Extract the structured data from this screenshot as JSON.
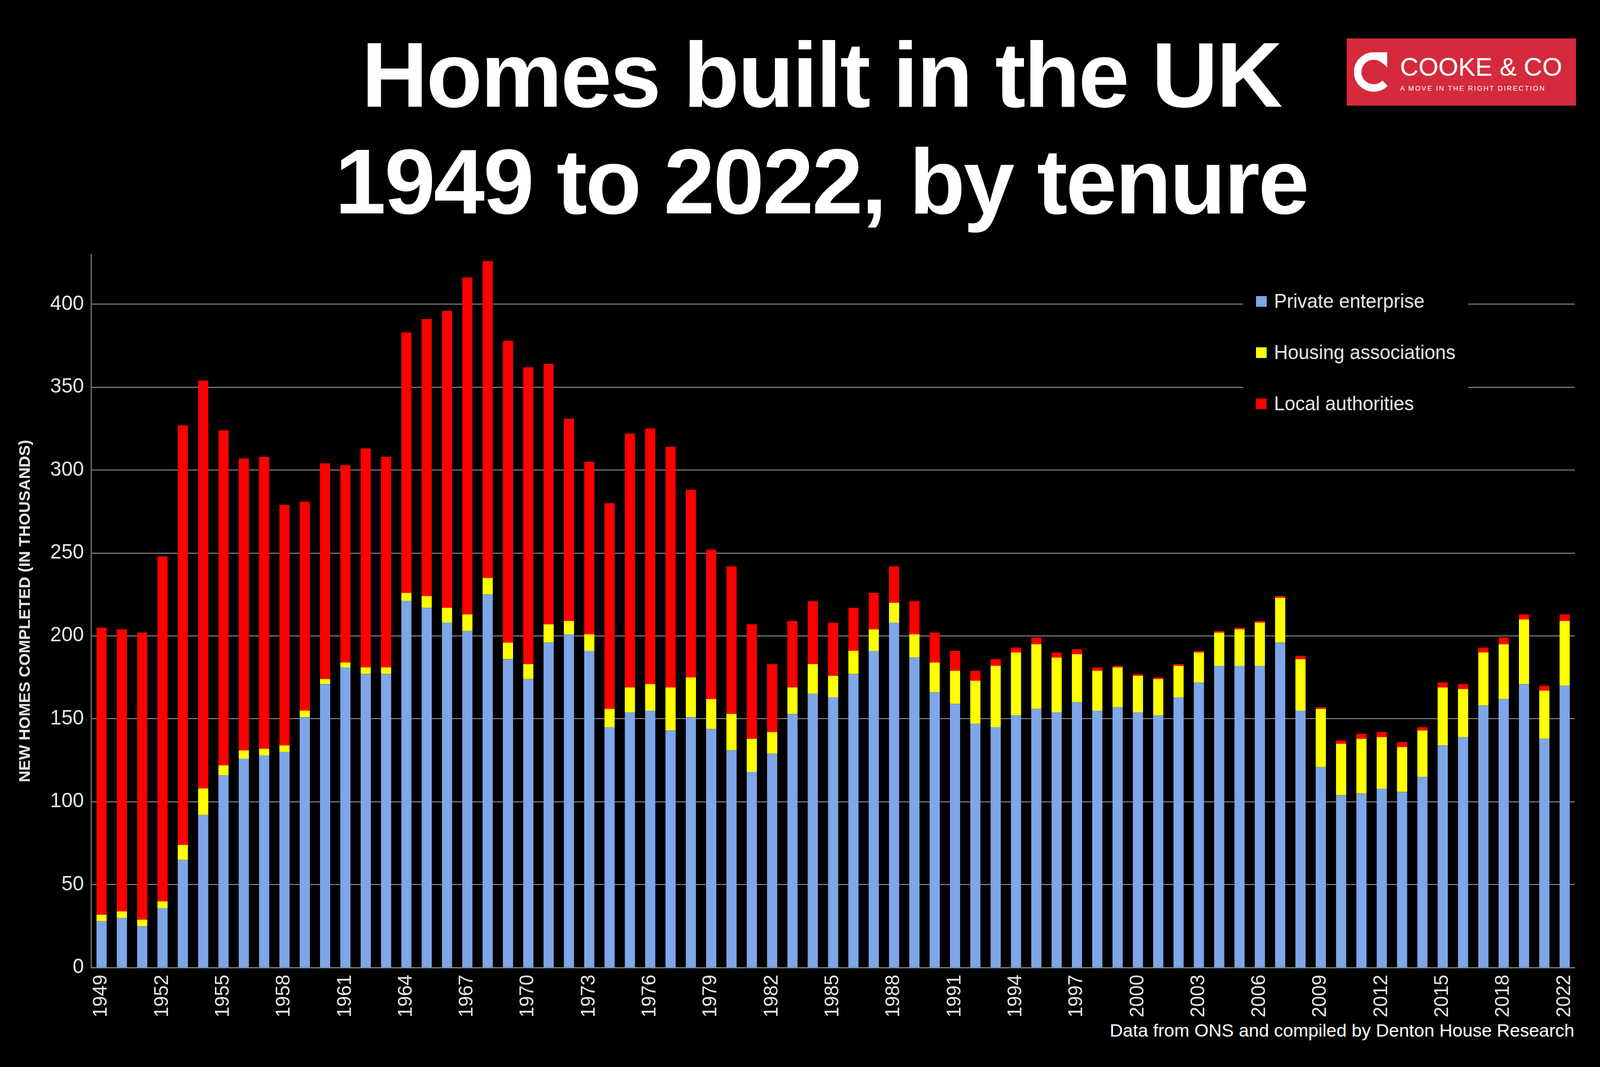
{
  "chart_data": {
    "type": "bar",
    "title": "Homes built in the UK\n1949 to 2022, by tenure",
    "y_label": "NEW HOMES COMPLETED (IN THOUSANDS)",
    "annotations": [
      "Data from ONS and compiled by Denton House Research"
    ],
    "categories": [
      "1949",
      null,
      null,
      "1952",
      null,
      null,
      "1955",
      null,
      null,
      "1958",
      null,
      null,
      "1961",
      null,
      null,
      "1964",
      null,
      null,
      "1967",
      null,
      null,
      "1970",
      null,
      null,
      "1973",
      null,
      null,
      "1976",
      null,
      null,
      "1979",
      null,
      null,
      "1982",
      null,
      null,
      "1985",
      null,
      null,
      "1988",
      null,
      null,
      "1991",
      null,
      null,
      "1994",
      null,
      null,
      "1997",
      null,
      null,
      "2000",
      null,
      null,
      "2003",
      null,
      null,
      "2006",
      null,
      null,
      "2009",
      null,
      null,
      "2012",
      null,
      null,
      "2015",
      null,
      null,
      "2018",
      null,
      null,
      "2022"
    ],
    "series": [
      {
        "name": "Private enterprise",
        "color": "#7ea6e8",
        "values": [
          28,
          30,
          25,
          36,
          65,
          92,
          116,
          126,
          128,
          130,
          151,
          171,
          181,
          177,
          177,
          221,
          217,
          208,
          203,
          225,
          186,
          174,
          196,
          201,
          191,
          145,
          154,
          155,
          143,
          151,
          144,
          131,
          118,
          129,
          153,
          165,
          163,
          177,
          191,
          208,
          187,
          166,
          159,
          147,
          145,
          152,
          156,
          154,
          160,
          155,
          157,
          154,
          152,
          163,
          172,
          182,
          182,
          182,
          196,
          155,
          121,
          104,
          105,
          108,
          106,
          115,
          134,
          139,
          158,
          162,
          171,
          138,
          170
        ]
      },
      {
        "name": "Housing associations",
        "color": "#ffff00",
        "values": [
          4,
          4,
          4,
          4,
          9,
          16,
          6,
          5,
          4,
          4,
          4,
          3,
          3,
          4,
          4,
          5,
          7,
          9,
          10,
          10,
          10,
          9,
          11,
          8,
          10,
          11,
          15,
          16,
          26,
          24,
          18,
          22,
          20,
          13,
          16,
          18,
          13,
          14,
          13,
          12,
          14,
          18,
          20,
          26,
          37,
          38,
          39,
          33,
          29,
          24,
          24,
          22,
          22,
          19,
          18,
          20,
          22,
          26,
          27,
          31,
          35,
          31,
          33,
          31,
          27,
          28,
          35,
          29,
          32,
          33,
          39,
          29,
          39
        ]
      },
      {
        "name": "Local authorities",
        "color": "#ff0000",
        "values": [
          173,
          170,
          173,
          208,
          253,
          246,
          202,
          176,
          176,
          145,
          126,
          130,
          119,
          132,
          127,
          157,
          167,
          179,
          203,
          191,
          182,
          179,
          157,
          122,
          104,
          124,
          153,
          154,
          145,
          113,
          90,
          89,
          69,
          41,
          40,
          38,
          32,
          26,
          22,
          22,
          20,
          18,
          12,
          6,
          4,
          3,
          4,
          3,
          3,
          2,
          1,
          1,
          1,
          1,
          1,
          1,
          1,
          1,
          1,
          2,
          1,
          2,
          3,
          3,
          3,
          2,
          3,
          3,
          3,
          4,
          3,
          3,
          4
        ]
      }
    ],
    "stacked": true,
    "ylim": [
      0,
      430
    ],
    "yticks": [
      0,
      50,
      100,
      150,
      200,
      250,
      300,
      350,
      400
    ],
    "grid": true,
    "legend": "upper right"
  },
  "logo": {
    "name": "COOKE & CO",
    "tagline": "A MOVE IN THE RIGHT DIRECTION"
  }
}
